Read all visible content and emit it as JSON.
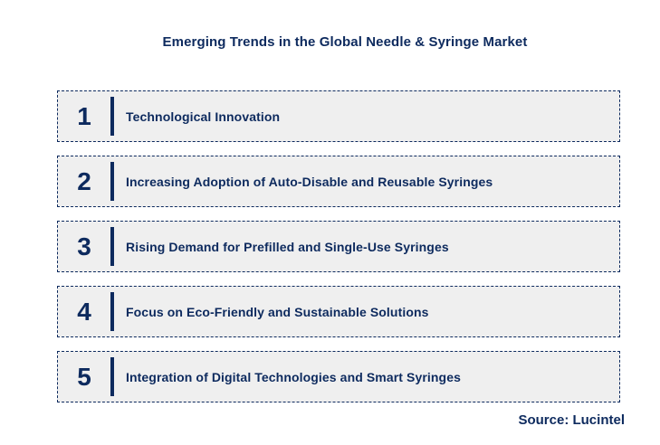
{
  "title": "Emerging Trends in the Global Needle & Syringe Market",
  "source": "Source: Lucintel",
  "colors": {
    "navy": "#0d2a5e",
    "box_background": "#efefef",
    "page_background": "#ffffff"
  },
  "trends": [
    {
      "number": "1",
      "label": "Technological Innovation"
    },
    {
      "number": "2",
      "label": "Increasing Adoption of Auto-Disable and Reusable Syringes"
    },
    {
      "number": "3",
      "label": "Rising Demand for Prefilled and Single-Use Syringes"
    },
    {
      "number": "4",
      "label": "Focus on Eco-Friendly and Sustainable Solutions"
    },
    {
      "number": "5",
      "label": "Integration of Digital Technologies and Smart Syringes"
    }
  ]
}
